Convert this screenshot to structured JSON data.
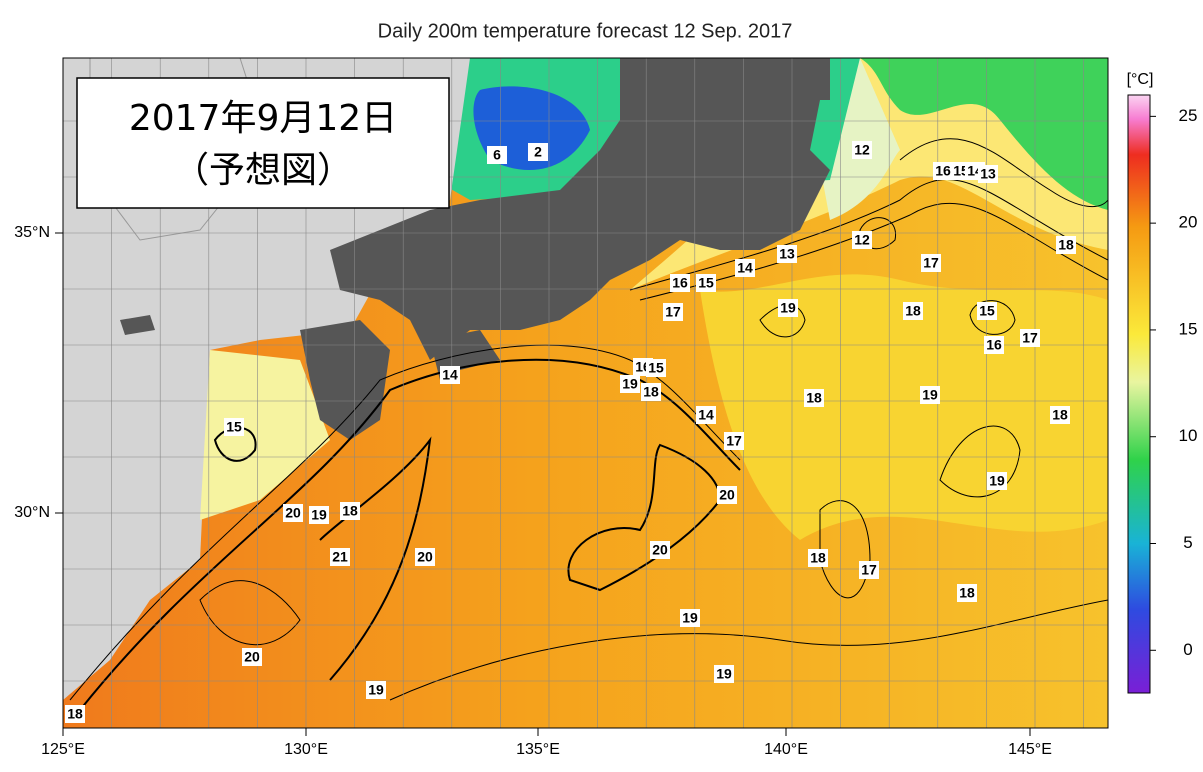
{
  "title": "Daily 200m temperature forecast 12 Sep. 2017",
  "box": [
    "2017年9月12日",
    "（予想図）"
  ],
  "lon_labels": [
    "125°E",
    "130°E",
    "135°E",
    "140°E",
    "145°E"
  ],
  "lat_labels": [
    "35°N",
    "30°N"
  ],
  "colorbar": {
    "unit": "[°C]",
    "clim": [
      -2,
      26
    ],
    "ticks": [
      25,
      20,
      15,
      10,
      5,
      0
    ]
  },
  "contour_labels": [
    6,
    2,
    12,
    16,
    15,
    14,
    13,
    12,
    18,
    17,
    13,
    14,
    16,
    15,
    17,
    19,
    18,
    15,
    17,
    16,
    14,
    16,
    15,
    19,
    18,
    18,
    19,
    14,
    18,
    15,
    17,
    19,
    20,
    20,
    19,
    18,
    21,
    20,
    20,
    18,
    17,
    18,
    19,
    19,
    20,
    19,
    18
  ]
}
